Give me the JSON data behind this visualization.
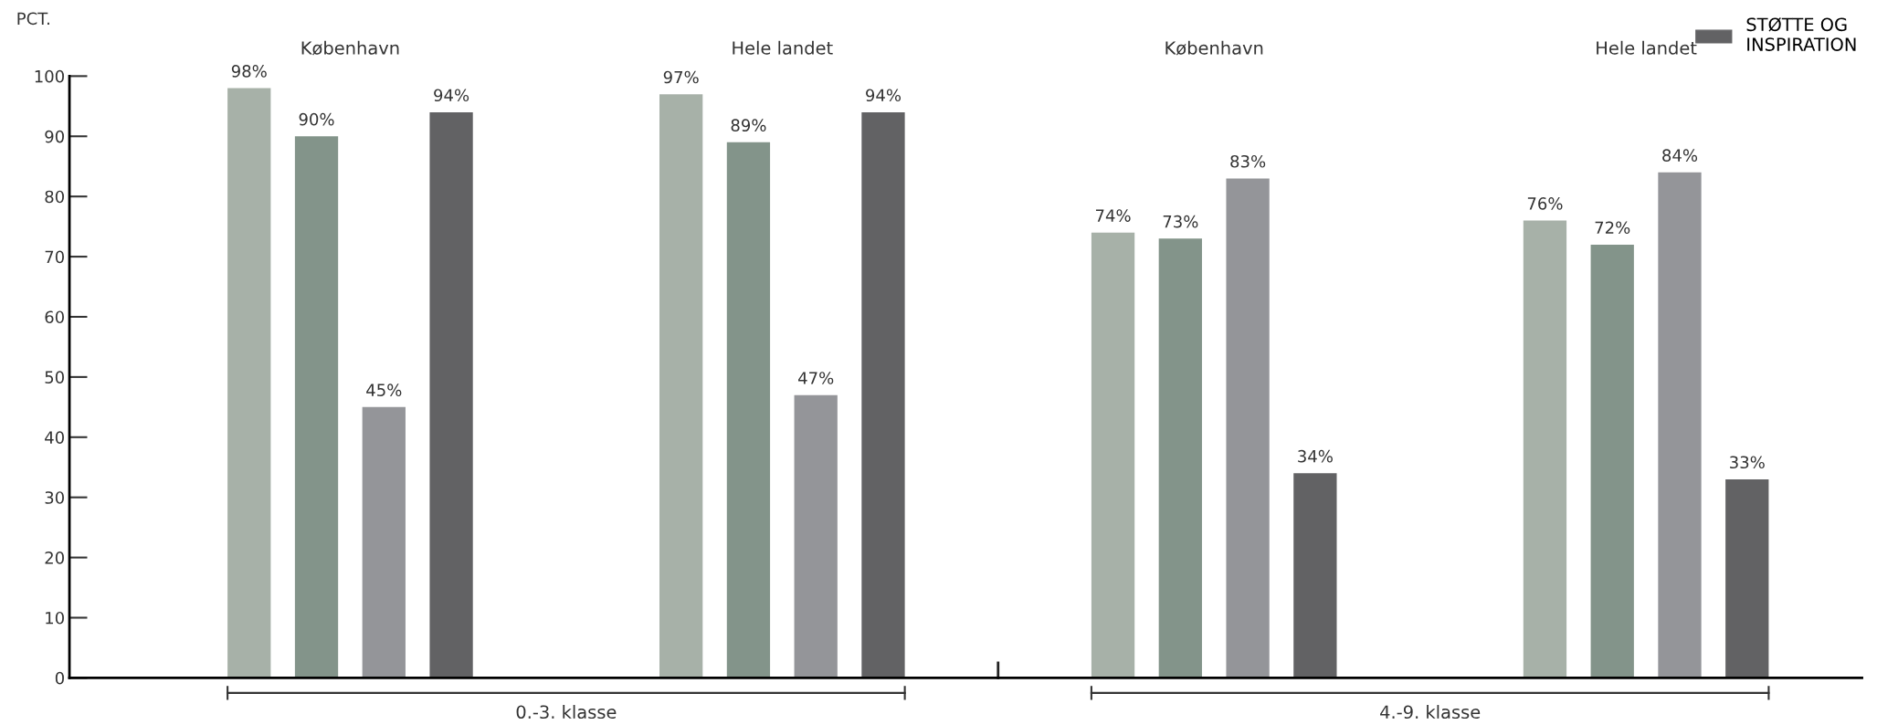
{
  "chart_data": {
    "type": "bar",
    "ylabel": "PCT.",
    "categories": [
      "København",
      "Hele landet",
      "København",
      "Hele landet"
    ],
    "series": [
      {
        "color": "#a7b1a8",
        "values": [
          98,
          97,
          74,
          76
        ],
        "value_labels": [
          "98%",
          "97%",
          "74%",
          "76%"
        ]
      },
      {
        "color": "#83948a",
        "values": [
          90,
          89,
          73,
          72
        ],
        "value_labels": [
          "90%",
          "89%",
          "73%",
          "72%"
        ]
      },
      {
        "color": "#949599",
        "values": [
          45,
          47,
          83,
          84
        ],
        "value_labels": [
          "45%",
          "47%",
          "83%",
          "84%"
        ]
      },
      {
        "name": "STØTTE OG\nINSPIRATION",
        "color": "#626264",
        "values": [
          94,
          94,
          34,
          33
        ],
        "value_labels": [
          "94%",
          "94%",
          "34%",
          "33%"
        ]
      }
    ],
    "annotations": [
      "0.-3. klasse",
      "4.-9. klasse"
    ],
    "ylim": [
      0,
      100
    ],
    "yticks": [
      0,
      10,
      20,
      30,
      40,
      50,
      60,
      70,
      80,
      90,
      100
    ],
    "grid": false,
    "legend": "top right"
  }
}
